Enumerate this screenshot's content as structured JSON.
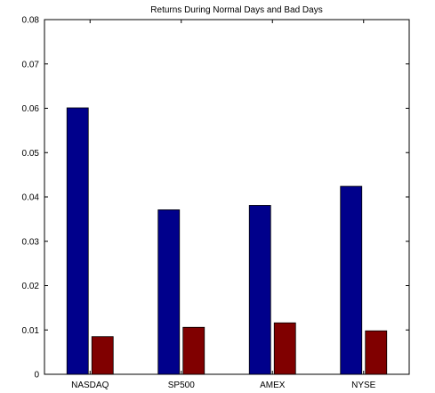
{
  "chart_data": {
    "type": "bar",
    "title": "Returns During Normal Days and Bad Days",
    "xlabel": "",
    "ylabel": "",
    "categories": [
      "NASDAQ",
      "SP500",
      "AMEX",
      "NYSE"
    ],
    "series": [
      {
        "color": "#00008b",
        "values": [
          0.0601,
          0.0371,
          0.0381,
          0.0424
        ]
      },
      {
        "color": "#800000",
        "values": [
          0.0085,
          0.0106,
          0.0116,
          0.0098
        ]
      }
    ],
    "ylim": [
      0,
      0.08
    ],
    "yticks": [
      "0",
      "0.01",
      "0.02",
      "0.03",
      "0.04",
      "0.05",
      "0.06",
      "0.07",
      "0.08"
    ],
    "grid": false,
    "legend": "none"
  }
}
